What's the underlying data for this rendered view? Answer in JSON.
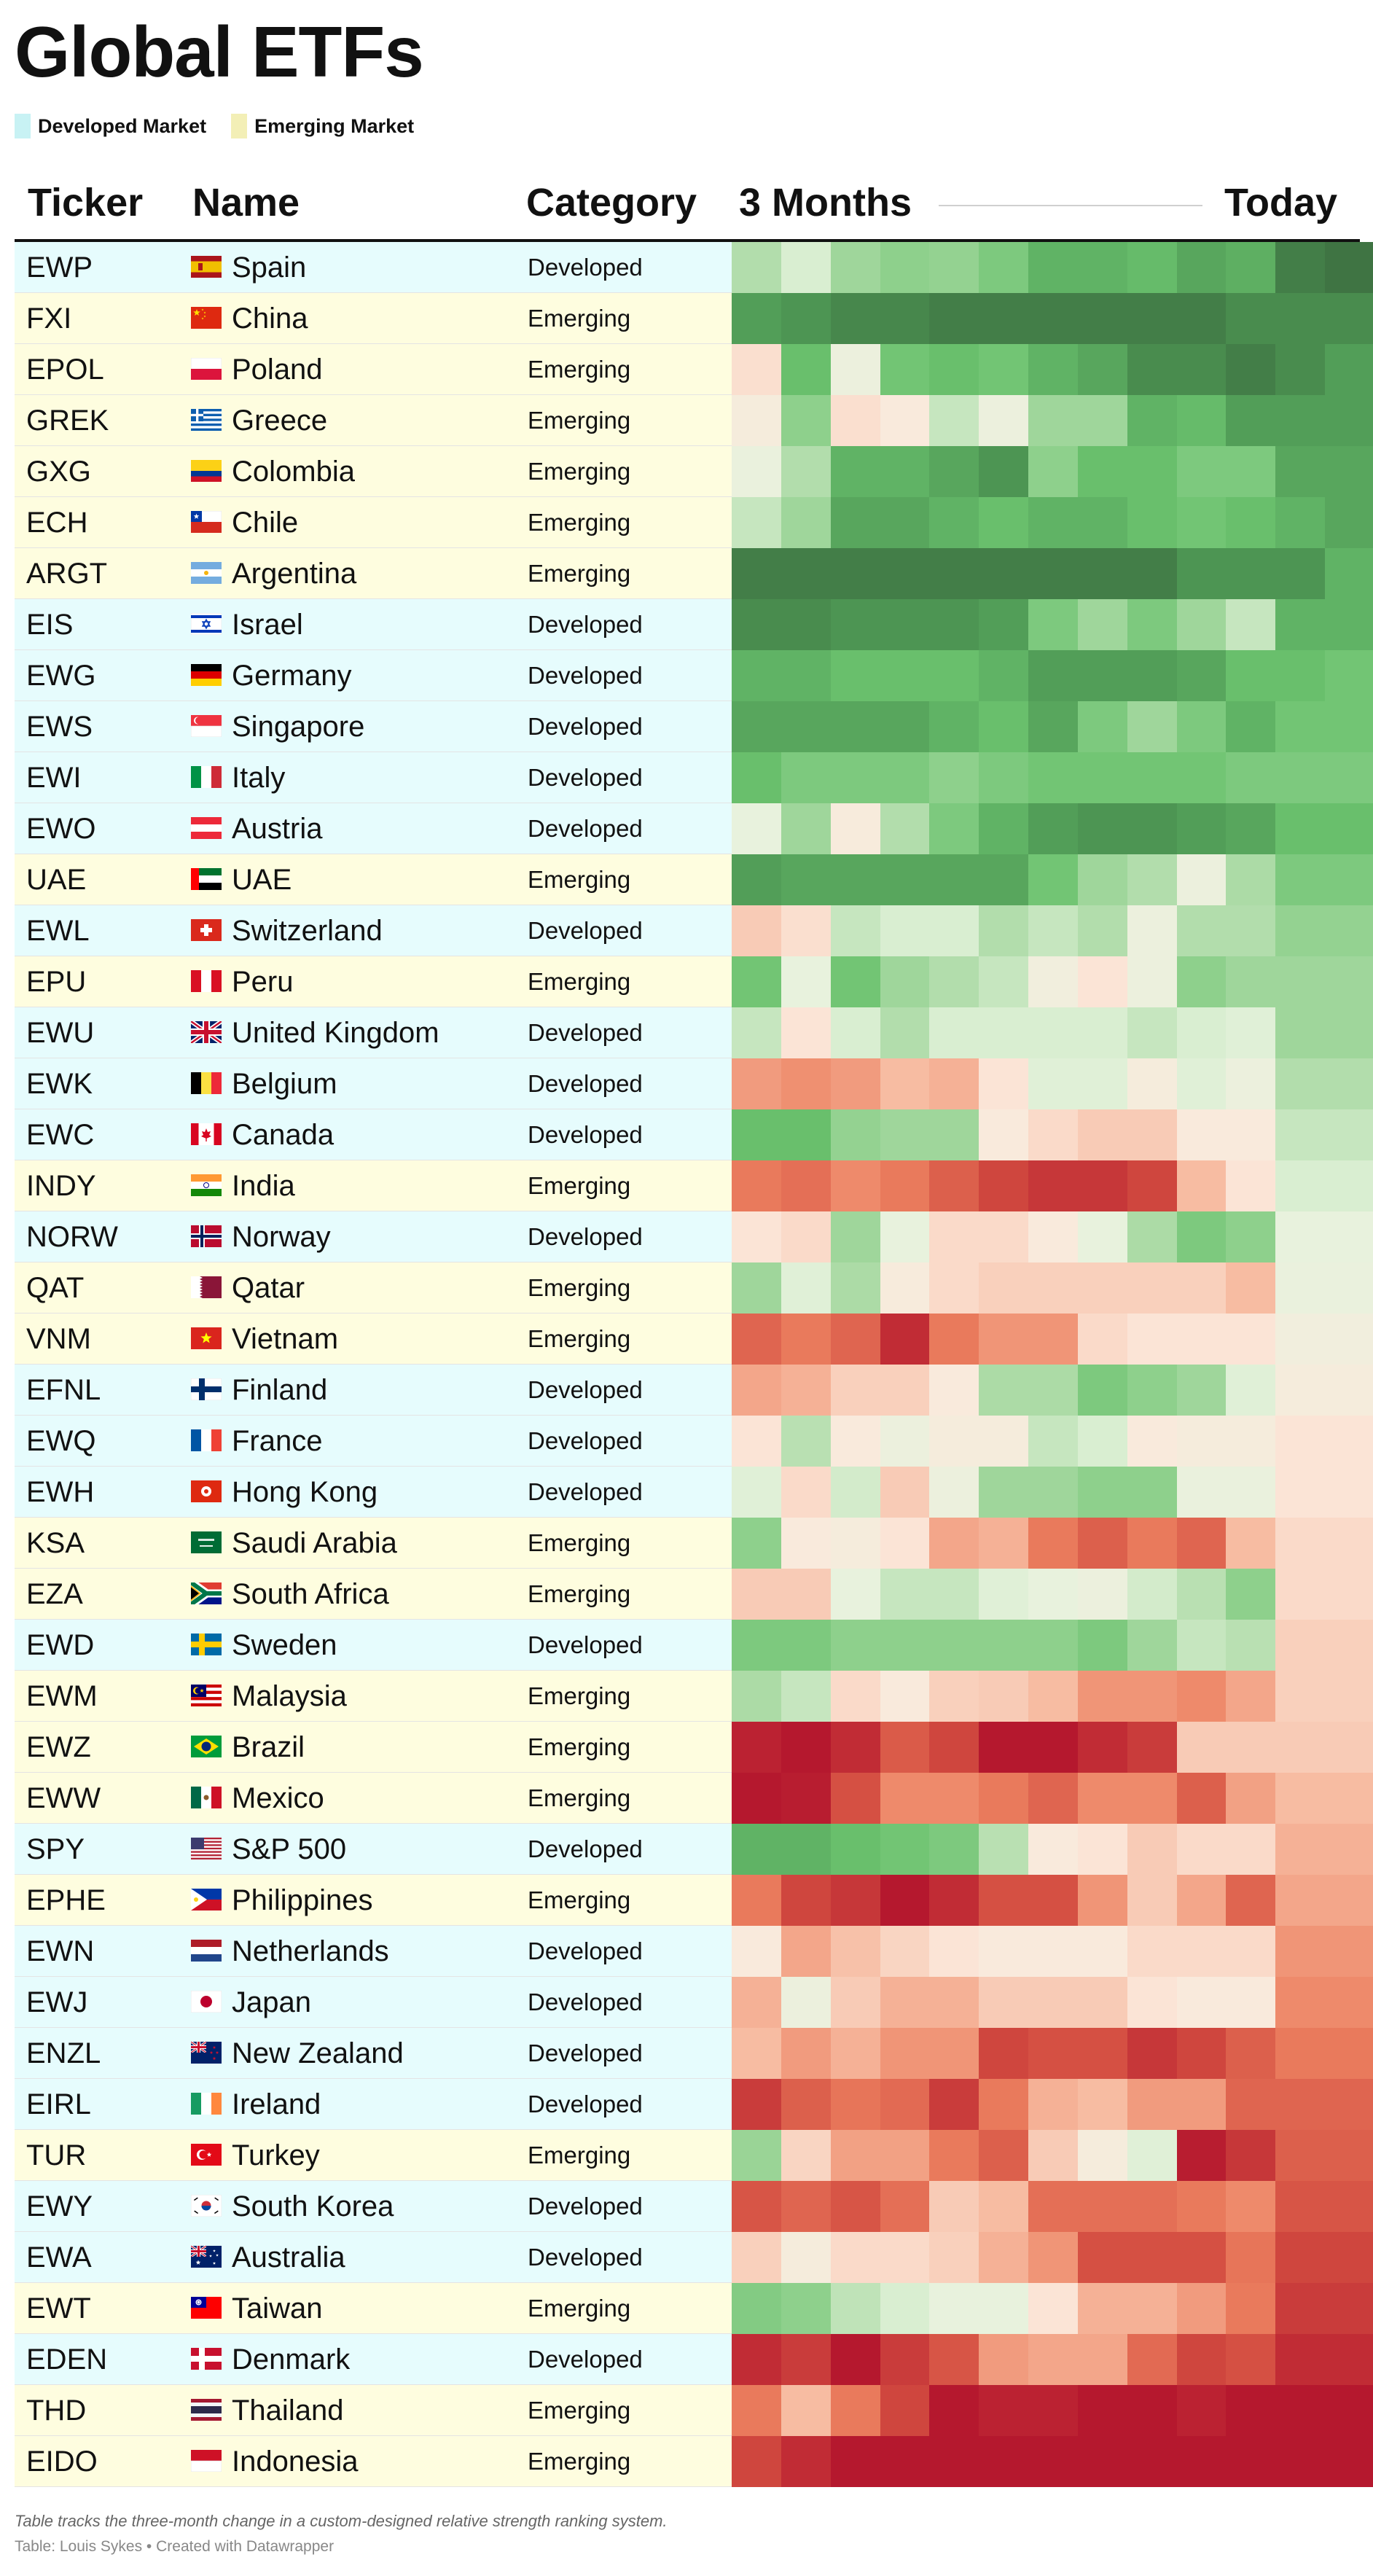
{
  "title": "Global ETFs",
  "legend": [
    {
      "label": "Developed Market",
      "color": "#c8f2f4"
    },
    {
      "label": "Emerging Market",
      "color": "#f3efb6"
    }
  ],
  "headers": {
    "ticker": "Ticker",
    "name": "Name",
    "category": "Category",
    "start": "3 Months",
    "end": "Today"
  },
  "row_colors": {
    "Developed": "#e6fcfd",
    "Emerging": "#fefddf"
  },
  "note": "Table tracks the three-month change in a custom-designed relative strength ranking system.",
  "credit": "Table: Louis Sykes • Created with Datawrapper",
  "chart_data": {
    "type": "heatmap",
    "columns": 13,
    "scale": [
      "#3b6b3f",
      "#4f9a55",
      "#6cc36f",
      "#a5d8a0",
      "#e6f3dd",
      "#fbe9dc",
      "#f6b79c",
      "#ec7f5f",
      "#d24b40",
      "#b5182e"
    ],
    "rows": [
      {
        "ticker": "EWP",
        "name": "Spain",
        "category": "Developed",
        "flag": "spain",
        "values": [
          3.2,
          3.8,
          2.9,
          2.6,
          2.7,
          2.3,
          1.6,
          1.6,
          1.8,
          1.3,
          1.5,
          0.4,
          0.2
        ]
      },
      {
        "ticker": "FXI",
        "name": "China",
        "category": "Emerging",
        "flag": "china",
        "values": [
          1.1,
          0.9,
          0.6,
          0.6,
          0.4,
          0.4,
          0.4,
          0.4,
          0.4,
          0.4,
          0.7,
          0.7,
          0.7
        ]
      },
      {
        "ticker": "EPOL",
        "name": "Poland",
        "category": "Emerging",
        "flag": "poland",
        "values": [
          5.2,
          1.9,
          4.3,
          2.1,
          1.9,
          2.1,
          1.6,
          1.3,
          0.7,
          0.7,
          0.4,
          0.7,
          1.1
        ]
      },
      {
        "ticker": "GREK",
        "name": "Greece",
        "category": "Emerging",
        "flag": "greece",
        "values": [
          4.7,
          2.6,
          5.2,
          4.9,
          3.5,
          4.3,
          2.9,
          2.9,
          1.6,
          1.8,
          1.1,
          1.1,
          1.1
        ]
      },
      {
        "ticker": "GXG",
        "name": "Colombia",
        "category": "Emerging",
        "flag": "colombia",
        "values": [
          4.2,
          3.2,
          1.6,
          1.6,
          1.3,
          0.9,
          2.6,
          1.9,
          1.9,
          2.3,
          2.3,
          1.3,
          1.3
        ]
      },
      {
        "ticker": "ECH",
        "name": "Chile",
        "category": "Emerging",
        "flag": "chile",
        "values": [
          3.5,
          2.9,
          1.3,
          1.3,
          1.6,
          1.9,
          1.6,
          1.6,
          1.9,
          2.1,
          1.9,
          1.6,
          1.3
        ]
      },
      {
        "ticker": "ARGT",
        "name": "Argentina",
        "category": "Emerging",
        "flag": "argentina",
        "values": [
          0.4,
          0.4,
          0.4,
          0.4,
          0.4,
          0.4,
          0.4,
          0.4,
          0.4,
          0.9,
          0.9,
          0.9,
          1.6
        ]
      },
      {
        "ticker": "EIS",
        "name": "Israel",
        "category": "Developed",
        "flag": "israel",
        "values": [
          0.7,
          0.7,
          0.9,
          0.9,
          0.9,
          1.1,
          2.3,
          2.9,
          2.3,
          2.9,
          3.5,
          1.6,
          1.6
        ]
      },
      {
        "ticker": "EWG",
        "name": "Germany",
        "category": "Developed",
        "flag": "germany",
        "values": [
          1.6,
          1.6,
          1.9,
          1.9,
          1.9,
          1.6,
          1.1,
          1.1,
          1.1,
          1.3,
          1.9,
          1.9,
          2.1
        ]
      },
      {
        "ticker": "EWS",
        "name": "Singapore",
        "category": "Developed",
        "flag": "singapore",
        "values": [
          1.3,
          1.3,
          1.3,
          1.3,
          1.6,
          1.9,
          1.3,
          2.3,
          2.9,
          2.3,
          1.6,
          2.1,
          2.1
        ]
      },
      {
        "ticker": "EWI",
        "name": "Italy",
        "category": "Developed",
        "flag": "italy",
        "values": [
          1.9,
          2.3,
          2.3,
          2.3,
          2.6,
          2.3,
          2.1,
          2.1,
          2.1,
          2.1,
          2.3,
          2.3,
          2.3
        ]
      },
      {
        "ticker": "EWO",
        "name": "Austria",
        "category": "Developed",
        "flag": "austria",
        "values": [
          4.1,
          2.9,
          4.8,
          3.2,
          2.3,
          1.6,
          1.1,
          0.9,
          0.9,
          1.1,
          1.3,
          1.9,
          1.9
        ]
      },
      {
        "ticker": "UAE",
        "name": "UAE",
        "category": "Emerging",
        "flag": "uae",
        "values": [
          1.1,
          1.3,
          1.3,
          1.3,
          1.3,
          1.3,
          2.1,
          2.9,
          3.2,
          4.3,
          3.1,
          2.3,
          2.3
        ]
      },
      {
        "ticker": "EWL",
        "name": "Switzerland",
        "category": "Developed",
        "flag": "switzerland",
        "values": [
          5.6,
          5.2,
          3.5,
          3.8,
          3.8,
          3.2,
          3.5,
          3.2,
          4.3,
          3.2,
          3.2,
          2.7,
          2.7
        ]
      },
      {
        "ticker": "EPU",
        "name": "Peru",
        "category": "Emerging",
        "flag": "peru",
        "values": [
          2.1,
          4.1,
          2.1,
          2.9,
          3.2,
          3.5,
          4.5,
          5.1,
          4.3,
          2.6,
          2.9,
          2.9,
          2.9
        ]
      },
      {
        "ticker": "EWU",
        "name": "United Kingdom",
        "category": "Developed",
        "flag": "uk",
        "values": [
          3.5,
          5.1,
          3.8,
          3.2,
          3.8,
          3.8,
          3.8,
          3.8,
          3.5,
          3.8,
          3.9,
          2.9,
          2.9
        ]
      },
      {
        "ticker": "EWK",
        "name": "Belgium",
        "category": "Developed",
        "flag": "belgium",
        "values": [
          6.5,
          6.7,
          6.5,
          5.9,
          6.1,
          5.1,
          3.9,
          3.9,
          4.7,
          3.9,
          4.3,
          3.2,
          3.2
        ]
      },
      {
        "ticker": "EWC",
        "name": "Canada",
        "category": "Developed",
        "flag": "canada",
        "values": [
          1.9,
          1.9,
          2.7,
          2.9,
          2.9,
          4.9,
          5.3,
          5.6,
          5.6,
          4.9,
          4.9,
          3.5,
          3.5
        ]
      },
      {
        "ticker": "INDY",
        "name": "India",
        "category": "Emerging",
        "flag": "india",
        "values": [
          7.1,
          7.3,
          6.8,
          7.1,
          7.6,
          8.1,
          8.4,
          8.4,
          8.1,
          5.9,
          5.1,
          3.8,
          3.8
        ]
      },
      {
        "ticker": "NORW",
        "name": "Norway",
        "category": "Developed",
        "flag": "norway",
        "values": [
          5.1,
          5.3,
          2.9,
          4.1,
          5.3,
          5.3,
          4.9,
          4.1,
          3.1,
          2.3,
          2.6,
          4.1,
          4.1
        ]
      },
      {
        "ticker": "QAT",
        "name": "Qatar",
        "category": "Emerging",
        "flag": "qatar",
        "values": [
          2.9,
          3.9,
          3.1,
          4.8,
          5.3,
          5.5,
          5.5,
          5.5,
          5.5,
          5.5,
          5.9,
          4.2,
          4.2
        ]
      },
      {
        "ticker": "VNM",
        "name": "Vietnam",
        "category": "Emerging",
        "flag": "vietnam",
        "values": [
          7.5,
          7.1,
          7.5,
          8.6,
          7.1,
          6.6,
          6.6,
          5.3,
          5.1,
          5.1,
          5.1,
          4.5,
          4.5
        ]
      },
      {
        "ticker": "EFNL",
        "name": "Finland",
        "category": "Developed",
        "flag": "finland",
        "values": [
          6.3,
          6.1,
          5.5,
          5.5,
          4.9,
          3.1,
          3.1,
          2.3,
          2.6,
          2.9,
          3.9,
          4.7,
          4.7
        ]
      },
      {
        "ticker": "EWQ",
        "name": "France",
        "category": "Developed",
        "flag": "france",
        "values": [
          5.1,
          3.3,
          4.9,
          4.3,
          4.7,
          4.7,
          3.5,
          3.8,
          4.9,
          4.7,
          4.7,
          5.1,
          5.1
        ]
      },
      {
        "ticker": "EWH",
        "name": "Hong Kong",
        "category": "Developed",
        "flag": "hongkong",
        "values": [
          3.9,
          5.3,
          3.7,
          5.6,
          4.3,
          2.9,
          2.9,
          2.6,
          2.6,
          4.2,
          4.2,
          5.1,
          5.1
        ]
      },
      {
        "ticker": "KSA",
        "name": "Saudi Arabia",
        "category": "Emerging",
        "flag": "saudi",
        "values": [
          2.6,
          4.9,
          4.7,
          5.1,
          6.3,
          6.1,
          7.1,
          7.6,
          7.1,
          7.5,
          5.9,
          5.3,
          5.3
        ]
      },
      {
        "ticker": "EZA",
        "name": "South Africa",
        "category": "Emerging",
        "flag": "southafrica",
        "values": [
          5.6,
          5.6,
          4.1,
          3.5,
          3.5,
          3.9,
          4.1,
          4.3,
          3.7,
          3.3,
          2.6,
          5.3,
          5.3
        ]
      },
      {
        "ticker": "EWD",
        "name": "Sweden",
        "category": "Developed",
        "flag": "sweden",
        "values": [
          2.3,
          2.3,
          2.6,
          2.6,
          2.6,
          2.6,
          2.6,
          2.3,
          2.9,
          3.5,
          3.3,
          5.5,
          5.5
        ]
      },
      {
        "ticker": "EWM",
        "name": "Malaysia",
        "category": "Emerging",
        "flag": "malaysia",
        "values": [
          3.1,
          3.5,
          5.3,
          4.9,
          5.5,
          5.6,
          5.9,
          6.6,
          6.6,
          6.8,
          6.3,
          5.5,
          5.5
        ]
      },
      {
        "ticker": "EWZ",
        "name": "Brazil",
        "category": "Emerging",
        "flag": "brazil",
        "values": [
          8.8,
          9.6,
          8.6,
          7.7,
          8.1,
          9.1,
          9.1,
          8.6,
          8.3,
          5.6,
          5.6,
          5.6,
          5.6
        ]
      },
      {
        "ticker": "EWW",
        "name": "Mexico",
        "category": "Emerging",
        "flag": "mexico",
        "values": [
          9.6,
          8.9,
          7.9,
          6.8,
          6.8,
          7.1,
          7.5,
          6.8,
          6.8,
          7.6,
          6.4,
          5.9,
          5.9
        ]
      },
      {
        "ticker": "SPY",
        "name": "S&P 500",
        "category": "Developed",
        "flag": "usa",
        "values": [
          1.6,
          1.6,
          1.9,
          2.1,
          2.3,
          3.3,
          4.9,
          5.1,
          5.6,
          5.3,
          5.3,
          6.1,
          6.1
        ]
      },
      {
        "ticker": "EPHE",
        "name": "Philippines",
        "category": "Emerging",
        "flag": "philippines",
        "values": [
          7.1,
          8.1,
          8.4,
          9.1,
          8.6,
          7.9,
          7.9,
          6.6,
          5.6,
          6.3,
          7.5,
          6.3,
          6.3
        ]
      },
      {
        "ticker": "EWN",
        "name": "Netherlands",
        "category": "Developed",
        "flag": "netherlands",
        "values": [
          4.9,
          6.3,
          5.8,
          5.4,
          5.1,
          4.9,
          4.9,
          4.9,
          5.3,
          5.3,
          5.3,
          6.6,
          6.6
        ]
      },
      {
        "ticker": "EWJ",
        "name": "Japan",
        "category": "Developed",
        "flag": "japan",
        "values": [
          6.1,
          4.3,
          5.6,
          6.1,
          6.1,
          5.6,
          5.6,
          5.6,
          5.1,
          4.9,
          4.9,
          6.8,
          6.8
        ]
      },
      {
        "ticker": "ENZL",
        "name": "New Zealand",
        "category": "Developed",
        "flag": "newzealand",
        "values": [
          5.9,
          6.5,
          6.1,
          6.6,
          6.6,
          8.1,
          7.9,
          7.9,
          8.4,
          8.1,
          7.6,
          7.1,
          7.1
        ]
      },
      {
        "ticker": "EIRL",
        "name": "Ireland",
        "category": "Developed",
        "flag": "ireland",
        "values": [
          8.3,
          7.6,
          7.2,
          7.4,
          8.3,
          7.1,
          6.1,
          5.9,
          6.5,
          6.5,
          7.5,
          7.5,
          7.5
        ]
      },
      {
        "ticker": "TUR",
        "name": "Turkey",
        "category": "Emerging",
        "flag": "turkey",
        "values": [
          2.8,
          5.4,
          6.4,
          6.4,
          7.1,
          7.6,
          5.6,
          4.7,
          3.9,
          8.9,
          8.4,
          7.6,
          7.6
        ]
      },
      {
        "ticker": "EWY",
        "name": "South Korea",
        "category": "Developed",
        "flag": "southkorea",
        "values": [
          7.8,
          7.5,
          7.8,
          7.3,
          5.6,
          5.9,
          7.3,
          7.3,
          7.3,
          7.1,
          6.8,
          7.8,
          7.8
        ]
      },
      {
        "ticker": "EWA",
        "name": "Australia",
        "category": "Developed",
        "flag": "australia",
        "values": [
          5.5,
          4.7,
          5.3,
          5.3,
          5.5,
          6.1,
          6.6,
          7.9,
          7.9,
          7.9,
          7.2,
          8.1,
          8.1
        ]
      },
      {
        "ticker": "EWT",
        "name": "Taiwan",
        "category": "Emerging",
        "flag": "taiwan",
        "values": [
          2.4,
          2.6,
          3.4,
          3.8,
          4.1,
          4.1,
          5.1,
          6.1,
          6.1,
          6.5,
          7.1,
          8.3,
          8.3
        ]
      },
      {
        "ticker": "EDEN",
        "name": "Denmark",
        "category": "Developed",
        "flag": "denmark",
        "values": [
          8.6,
          8.3,
          9.6,
          8.3,
          7.8,
          6.5,
          6.3,
          6.3,
          7.4,
          8.1,
          7.9,
          8.6,
          8.6
        ]
      },
      {
        "ticker": "THD",
        "name": "Thailand",
        "category": "Emerging",
        "flag": "thailand",
        "values": [
          7.1,
          5.9,
          7.1,
          8.1,
          9.1,
          8.8,
          8.8,
          9.3,
          9.3,
          8.8,
          9.3,
          9.3,
          9.3
        ]
      },
      {
        "ticker": "EIDO",
        "name": "Indonesia",
        "category": "Emerging",
        "flag": "indonesia",
        "values": [
          8.1,
          8.6,
          9.1,
          9.6,
          9.6,
          9.6,
          9.6,
          9.6,
          9.6,
          9.6,
          9.6,
          9.6,
          9.6
        ]
      }
    ]
  }
}
